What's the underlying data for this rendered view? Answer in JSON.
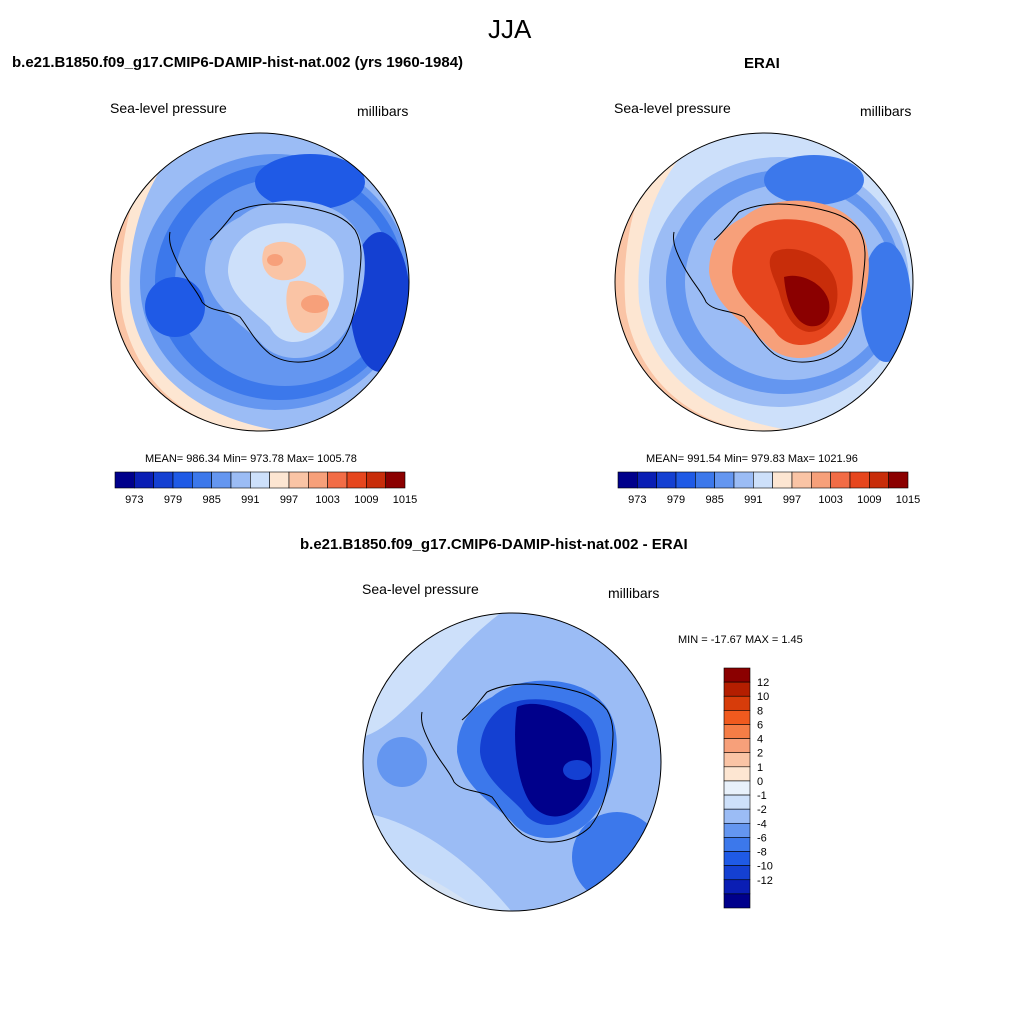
{
  "figure_title": "JJA",
  "panels": {
    "model": {
      "title": "b.e21.B1850.f09_g17.CMIP6-DAMIP-hist-nat.002 (yrs 1960-1984)",
      "left_label": "Sea-level pressure",
      "right_label": "millibars",
      "stats": "MEAN= 986.34  Min= 973.78  Max= 1005.78"
    },
    "obs": {
      "title": "ERAI",
      "left_label": "Sea-level pressure",
      "right_label": "millibars",
      "stats": "MEAN= 991.54  Min= 979.83  Max= 1021.96"
    },
    "diff": {
      "title": "b.e21.B1850.f09_g17.CMIP6-DAMIP-hist-nat.002 - ERAI",
      "left_label": "Sea-level pressure",
      "right_label": "millibars",
      "stats": "MIN = -17.67 MAX =   1.45"
    }
  },
  "chart_data": [
    {
      "type": "heatmap",
      "subtype": "polar-stereographic contour map",
      "title": "b.e21.B1850.f09_g17.CMIP6-DAMIP-hist-nat.002 (yrs 1960-1984)",
      "variable": "Sea-level pressure",
      "units": "millibars",
      "mean": 986.34,
      "min": 973.78,
      "max": 1005.78,
      "colorbar_levels": [
        973,
        976,
        979,
        982,
        985,
        988,
        991,
        994,
        997,
        1000,
        1003,
        1006,
        1009,
        1012,
        1015
      ],
      "colorbar_tick_labels": [
        "973",
        "979",
        "985",
        "991",
        "997",
        "1003",
        "1009",
        "1015"
      ]
    },
    {
      "type": "heatmap",
      "subtype": "polar-stereographic contour map",
      "title": "ERAI",
      "variable": "Sea-level pressure",
      "units": "millibars",
      "mean": 991.54,
      "min": 979.83,
      "max": 1021.96,
      "colorbar_levels": [
        973,
        976,
        979,
        982,
        985,
        988,
        991,
        994,
        997,
        1000,
        1003,
        1006,
        1009,
        1012,
        1015
      ],
      "colorbar_tick_labels": [
        "973",
        "979",
        "985",
        "991",
        "997",
        "1003",
        "1009",
        "1015"
      ]
    },
    {
      "type": "heatmap",
      "subtype": "polar-stereographic contour map (difference)",
      "title": "b.e21.B1850.f09_g17.CMIP6-DAMIP-hist-nat.002 - ERAI",
      "variable": "Sea-level pressure",
      "units": "millibars",
      "min": -17.67,
      "max": 1.45,
      "colorbar_levels": [
        -12,
        -10,
        -8,
        -6,
        -4,
        -2,
        -1,
        0,
        1,
        2,
        4,
        6,
        8,
        10,
        12
      ],
      "colorbar_tick_labels": [
        "12",
        "10",
        "8",
        "6",
        "4",
        "2",
        "1",
        "0",
        "-1",
        "-2",
        "-4",
        "-6",
        "-8",
        "-10",
        "-12"
      ]
    }
  ],
  "colors": {
    "abs_palette": [
      "#00008b",
      "#0a1eb4",
      "#1440d2",
      "#1f5ae6",
      "#3c78eb",
      "#6496f0",
      "#9bbcf5",
      "#cde0fa",
      "#fde6d2",
      "#fac4a5",
      "#f7a07a",
      "#f26c46",
      "#e6461e",
      "#c82d0a",
      "#8b0000"
    ],
    "diff_palette": [
      "#8b0000",
      "#b41e00",
      "#d73c0a",
      "#f05a1e",
      "#f57d46",
      "#f7a07a",
      "#fac4a5",
      "#fde6d2",
      "#e8f1fb",
      "#cde0fa",
      "#9bbcf5",
      "#6496f0",
      "#3c78eb",
      "#1f5ae6",
      "#1440d2",
      "#0a1eb4",
      "#00008b"
    ]
  }
}
